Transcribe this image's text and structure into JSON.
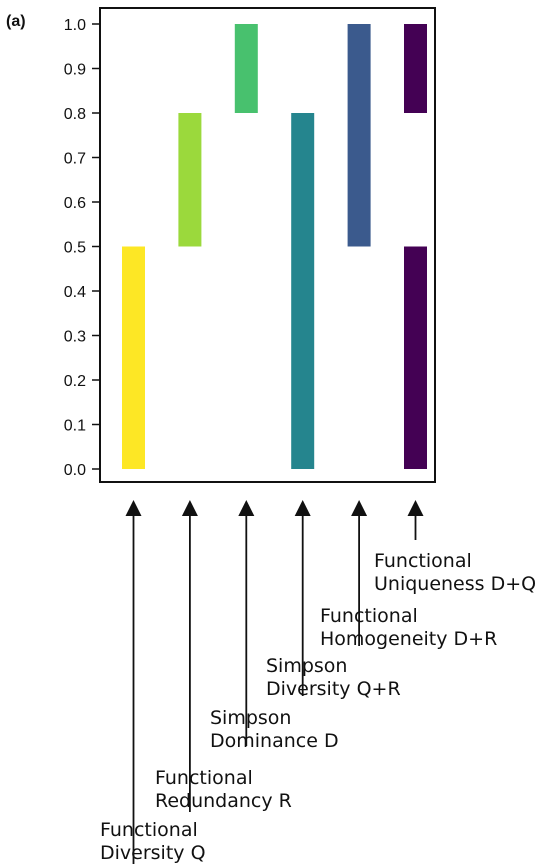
{
  "chart_data": {
    "type": "bar",
    "panel_label": "(a)",
    "title": "",
    "xlabel": "",
    "ylabel": "",
    "ylim": [
      0,
      1
    ],
    "y_ticks": [
      "0.0",
      "0.1",
      "0.2",
      "0.3",
      "0.4",
      "0.5",
      "0.6",
      "0.7",
      "0.8",
      "0.9",
      "1.0"
    ],
    "grid": false,
    "legend": "none",
    "bars": [
      {
        "segments": [
          [
            0.0,
            0.5
          ]
        ],
        "color": "#fde725",
        "annotation": [
          "Functional",
          "Diversity Q"
        ]
      },
      {
        "segments": [
          [
            0.5,
            0.8
          ]
        ],
        "color": "#9bd93c",
        "annotation": [
          "Functional",
          "Redundancy R"
        ]
      },
      {
        "segments": [
          [
            0.8,
            1.0
          ]
        ],
        "color": "#48c16e",
        "annotation": [
          "Simpson",
          "Dominance D"
        ]
      },
      {
        "segments": [
          [
            0.0,
            0.8
          ]
        ],
        "color": "#25858e",
        "annotation": [
          "Simpson",
          "Diversity Q+R"
        ]
      },
      {
        "segments": [
          [
            0.5,
            1.0
          ]
        ],
        "color": "#3b5a8d",
        "annotation": [
          "Functional",
          "Homogeneity D+R"
        ]
      },
      {
        "segments": [
          [
            0.0,
            0.5
          ],
          [
            0.8,
            1.0
          ]
        ],
        "color": "#440154",
        "annotation": [
          "Functional",
          "Uniqueness D+Q"
        ]
      }
    ]
  }
}
